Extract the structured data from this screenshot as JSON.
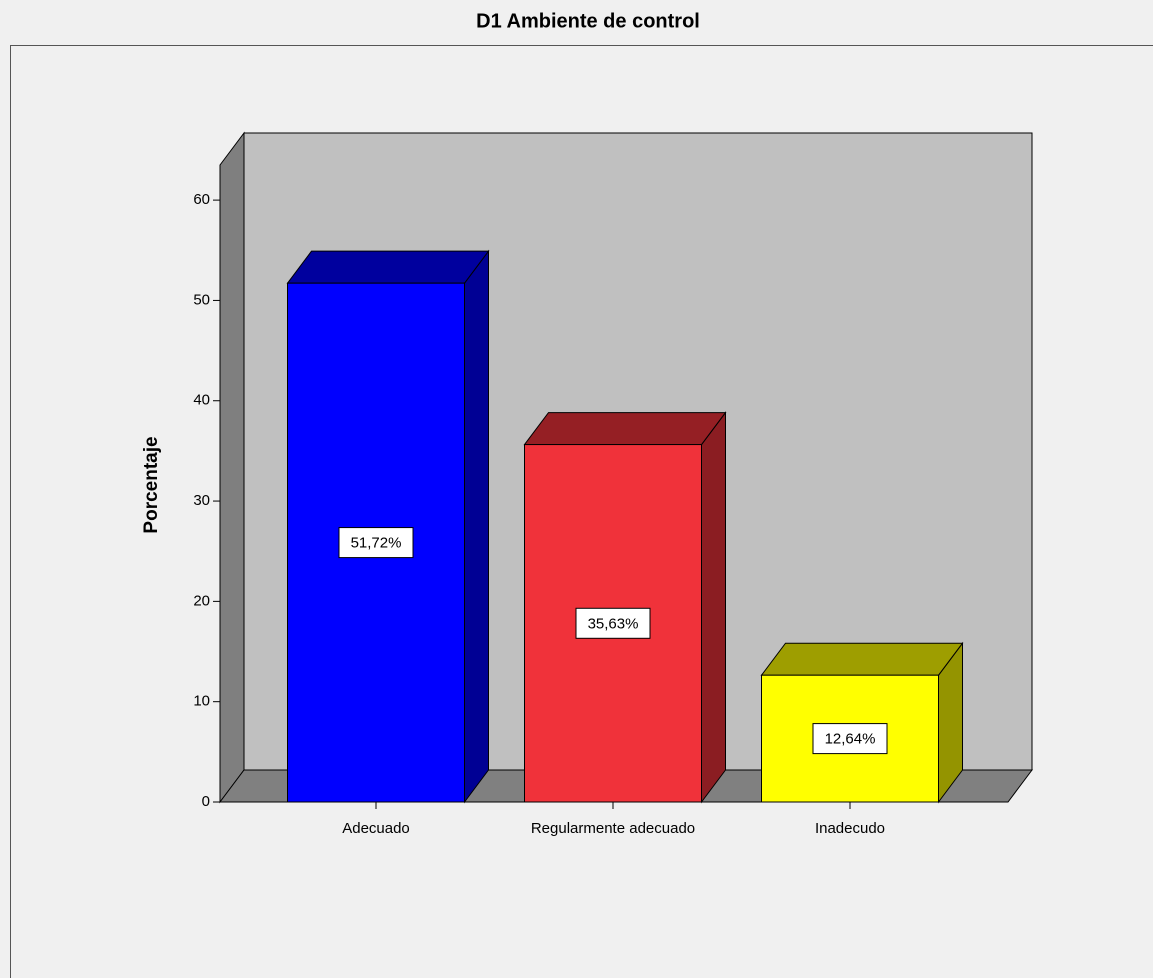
{
  "chart_data": {
    "type": "bar",
    "title": "D1 Ambiente de control",
    "ylabel": "Porcentaje",
    "categories": [
      "Adecuado",
      "Regularmente adecuado",
      "Inadecudo"
    ],
    "values": [
      51.72,
      35.63,
      12.64
    ],
    "value_labels": [
      "51,72%",
      "35,63%",
      "12,64%"
    ],
    "colors": [
      "#0000ff",
      "#f0323a",
      "#ffff00"
    ],
    "ylim": [
      0,
      63.5
    ],
    "yticks": [
      0,
      10,
      20,
      30,
      40,
      50,
      60
    ]
  }
}
